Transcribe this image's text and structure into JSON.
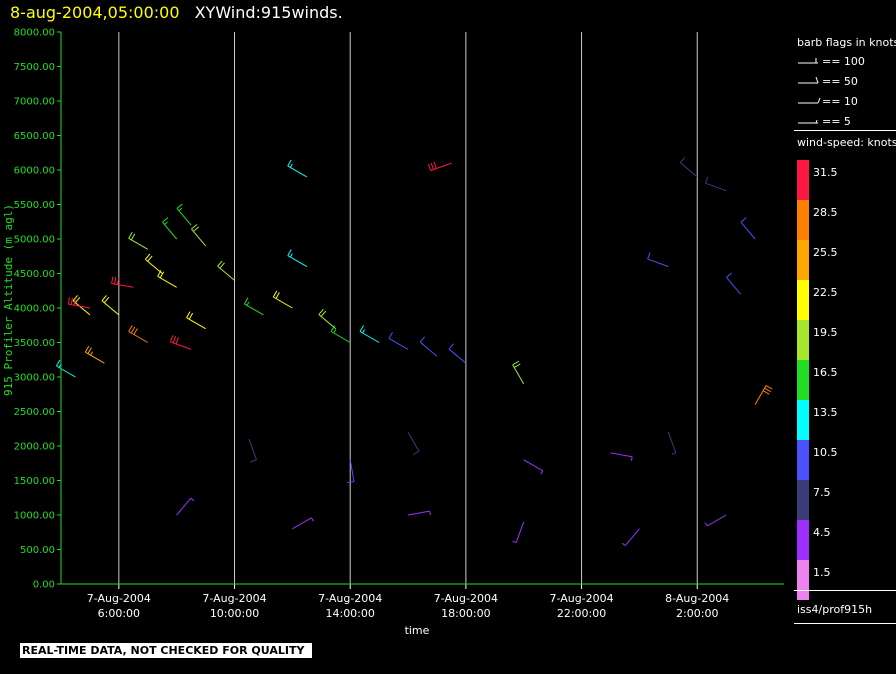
{
  "title": {
    "date": "8-aug-2004,05:00:00",
    "main": "XYWind:915winds."
  },
  "banner": "REAL-TIME DATA, NOT CHECKED FOR QUALITY",
  "legend": {
    "barb_title": "barb flags in knots",
    "barb_flags": [
      {
        "label": "== 100"
      },
      {
        "label": "== 50"
      },
      {
        "label": "== 10"
      },
      {
        "label": "== 5"
      }
    ],
    "speed_title": "wind-speed: knots",
    "speed_scale": [
      {
        "label": "31.5",
        "color": "#ff1744"
      },
      {
        "label": "28.5",
        "color": "#ff7f00"
      },
      {
        "label": "25.5",
        "color": "#ffa500"
      },
      {
        "label": "22.5",
        "color": "#ffff00"
      },
      {
        "label": "19.5",
        "color": "#a8e62e"
      },
      {
        "label": "16.5",
        "color": "#22dd22"
      },
      {
        "label": "13.5",
        "color": "#00ffff"
      },
      {
        "label": "10.5",
        "color": "#4b50ff"
      },
      {
        "label": "7.5",
        "color": "#3c3c78"
      },
      {
        "label": "4.5",
        "color": "#9b30ff"
      },
      {
        "label": "1.5",
        "color": "#ee82ee"
      }
    ],
    "station": "iss4/prof915h"
  },
  "chart_data": {
    "type": "scatter",
    "title": "XYWind:915winds.",
    "xlabel": "time",
    "ylabel": "915 Profiler Altitude (m agl)",
    "ylim": [
      0,
      8000
    ],
    "xlim": [
      "2004-08-07 04:00:00",
      "2004-08-08 05:00:00"
    ],
    "yticks": [
      "0.00",
      "500.00",
      "1000.00",
      "1500.00",
      "2000.00",
      "2500.00",
      "3000.00",
      "3500.00",
      "4000.00",
      "4500.00",
      "5000.00",
      "5500.00",
      "6000.00",
      "6500.00",
      "7000.00",
      "7500.00",
      "8000.00"
    ],
    "xticks": [
      {
        "date": "7-Aug-2004",
        "time": "6:00:00"
      },
      {
        "date": "7-Aug-2004",
        "time": "10:00:00"
      },
      {
        "date": "7-Aug-2004",
        "time": "14:00:00"
      },
      {
        "date": "7-Aug-2004",
        "time": "18:00:00"
      },
      {
        "date": "7-Aug-2004",
        "time": "22:00:00"
      },
      {
        "date": "8-Aug-2004",
        "time": "2:00:00"
      }
    ],
    "grid": "vertical lines at x ticks",
    "legend_position": "right",
    "units": "knots",
    "series": [
      {
        "barbs": [
          {
            "t": "2004-08-07 04:30",
            "h": 3000,
            "spd": 14,
            "dir": 300
          },
          {
            "t": "2004-08-07 05:00",
            "h": 3900,
            "spd": 22,
            "dir": 310
          },
          {
            "t": "2004-08-07 05:00",
            "h": 4000,
            "spd": 31,
            "dir": 280
          },
          {
            "t": "2004-08-07 05:30",
            "h": 3200,
            "spd": 25,
            "dir": 300
          },
          {
            "t": "2004-08-07 06:00",
            "h": 3900,
            "spd": 22,
            "dir": 310
          },
          {
            "t": "2004-08-07 06:30",
            "h": 4300,
            "spd": 31,
            "dir": 280
          },
          {
            "t": "2004-08-07 07:00",
            "h": 4850,
            "spd": 19,
            "dir": 300
          },
          {
            "t": "2004-08-07 07:30",
            "h": 4500,
            "spd": 22,
            "dir": 310
          },
          {
            "t": "2004-08-07 08:00",
            "h": 5000,
            "spd": 17,
            "dir": 320
          },
          {
            "t": "2004-08-07 08:30",
            "h": 5200,
            "spd": 17,
            "dir": 320
          },
          {
            "t": "2004-08-07 09:00",
            "h": 4900,
            "spd": 19,
            "dir": 320
          },
          {
            "t": "2004-08-07 08:00",
            "h": 4300,
            "spd": 22,
            "dir": 300
          },
          {
            "t": "2004-08-07 07:00",
            "h": 3500,
            "spd": 28,
            "dir": 300
          },
          {
            "t": "2004-08-07 08:30",
            "h": 3400,
            "spd": 31,
            "dir": 290
          },
          {
            "t": "2004-08-07 09:00",
            "h": 3700,
            "spd": 22,
            "dir": 300
          },
          {
            "t": "2004-08-07 10:00",
            "h": 4400,
            "spd": 19,
            "dir": 310
          },
          {
            "t": "2004-08-07 11:00",
            "h": 3900,
            "spd": 17,
            "dir": 300
          },
          {
            "t": "2004-08-07 12:00",
            "h": 4000,
            "spd": 22,
            "dir": 300
          },
          {
            "t": "2004-08-07 13:30",
            "h": 3700,
            "spd": 19,
            "dir": 310
          },
          {
            "t": "2004-08-07 14:00",
            "h": 3500,
            "spd": 17,
            "dir": 300
          },
          {
            "t": "2004-08-07 15:00",
            "h": 3500,
            "spd": 13,
            "dir": 300
          },
          {
            "t": "2004-08-07 16:00",
            "h": 3400,
            "spd": 11,
            "dir": 300
          },
          {
            "t": "2004-08-07 17:00",
            "h": 3300,
            "spd": 11,
            "dir": 310
          },
          {
            "t": "2004-08-07 18:00",
            "h": 3200,
            "spd": 11,
            "dir": 310
          },
          {
            "t": "2004-08-07 12:30",
            "h": 4600,
            "spd": 14,
            "dir": 300
          },
          {
            "t": "2004-08-07 12:30",
            "h": 5900,
            "spd": 13,
            "dir": 300
          },
          {
            "t": "2004-08-07 17:30",
            "h": 6100,
            "spd": 31,
            "dir": 250
          },
          {
            "t": "2004-08-08 01:00",
            "h": 4600,
            "spd": 10,
            "dir": 290
          },
          {
            "t": "2004-08-08 02:00",
            "h": 5900,
            "spd": 8,
            "dir": 310
          },
          {
            "t": "2004-08-08 03:00",
            "h": 5700,
            "spd": 8,
            "dir": 290
          },
          {
            "t": "2004-08-08 04:00",
            "h": 5000,
            "spd": 10,
            "dir": 320
          },
          {
            "t": "2004-08-08 03:30",
            "h": 4200,
            "spd": 10,
            "dir": 320
          },
          {
            "t": "2004-08-08 04:00",
            "h": 2600,
            "spd": 28,
            "dir": 30
          },
          {
            "t": "2004-08-07 20:00",
            "h": 2900,
            "spd": 19,
            "dir": 330
          },
          {
            "t": "2004-08-07 10:30",
            "h": 2100,
            "spd": 8,
            "dir": 160
          },
          {
            "t": "2004-08-07 14:00",
            "h": 1800,
            "spd": 11,
            "dir": 170
          },
          {
            "t": "2004-08-07 16:00",
            "h": 2200,
            "spd": 8,
            "dir": 150
          },
          {
            "t": "2004-08-07 20:00",
            "h": 1800,
            "spd": 6,
            "dir": 120
          },
          {
            "t": "2004-08-07 23:00",
            "h": 1900,
            "spd": 5,
            "dir": 100
          },
          {
            "t": "2004-08-08 01:00",
            "h": 2200,
            "spd": 7,
            "dir": 160
          },
          {
            "t": "2004-08-07 08:00",
            "h": 1000,
            "spd": 5,
            "dir": 40
          },
          {
            "t": "2004-08-07 12:00",
            "h": 800,
            "spd": 4,
            "dir": 60
          },
          {
            "t": "2004-08-07 16:00",
            "h": 1000,
            "spd": 5,
            "dir": 80
          },
          {
            "t": "2004-08-07 20:00",
            "h": 900,
            "spd": 4,
            "dir": 200
          },
          {
            "t": "2004-08-08 00:00",
            "h": 800,
            "spd": 5,
            "dir": 220
          },
          {
            "t": "2004-08-08 03:00",
            "h": 1000,
            "spd": 6,
            "dir": 240
          }
        ]
      }
    ]
  }
}
